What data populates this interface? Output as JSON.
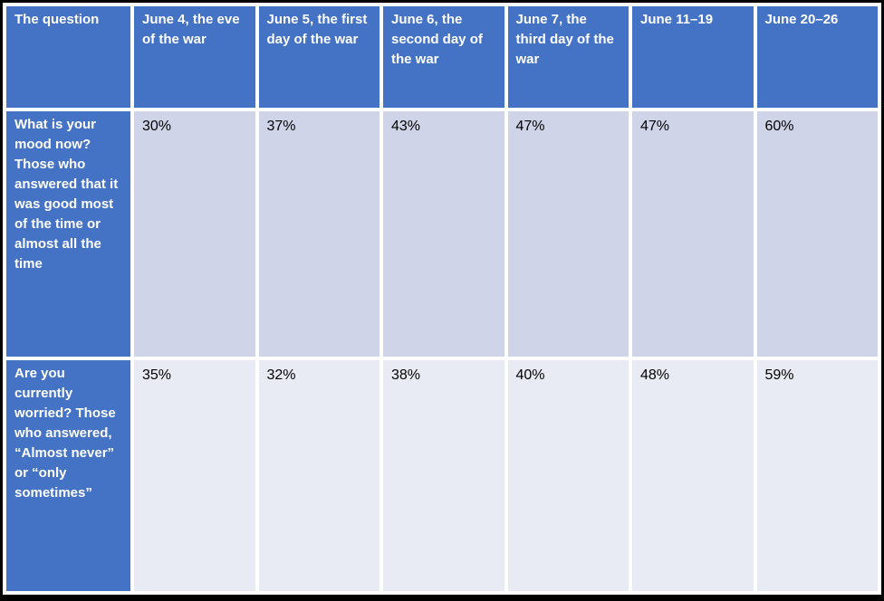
{
  "table": {
    "columns": [
      "The question",
      "June 4, the eve of the war",
      "June 5, the first day of the war",
      "June 6, the second day of the war",
      "June 7, the third day of the war",
      "June 11–19",
      "June 20–26"
    ],
    "rows": [
      {
        "question": "What is your mood now? Those who answered that it was good most of the time or almost all the time",
        "values": [
          "30%",
          "37%",
          "43%",
          "47%",
          "47%",
          "60%"
        ]
      },
      {
        "question": "Are you currently worried? Those who answered, “Almost never” or “only sometimes”",
        "values": [
          "35%",
          "32%",
          "38%",
          "40%",
          "48%",
          "59%"
        ]
      }
    ]
  },
  "colors": {
    "header_bg": "#4472C4",
    "header_text": "#FFFFFF",
    "band_dark": "#CFD4E9",
    "band_light": "#E9EBF4",
    "cell_gap": "#FFFFFF",
    "outer_border": "#000000",
    "value_text": "#000000"
  },
  "chart_data": {
    "type": "table",
    "columns": [
      "The question",
      "June 4, the eve of the war",
      "June 5, the first day of the war",
      "June 6, the second day of the war",
      "June 7, the third day of the war",
      "June 11–19",
      "June 20–26"
    ],
    "rows": [
      {
        "question": "What is your mood now? Those who answered that it was good most of the time or almost all the time",
        "values_percent": [
          30,
          37,
          43,
          47,
          47,
          60
        ]
      },
      {
        "question": "Are you currently worried? Those who answered, “Almost never” or “only sometimes”",
        "values_percent": [
          35,
          32,
          38,
          40,
          48,
          59
        ]
      }
    ],
    "layout": {
      "header_row": true,
      "header_column": true,
      "banded_rows": true
    }
  }
}
